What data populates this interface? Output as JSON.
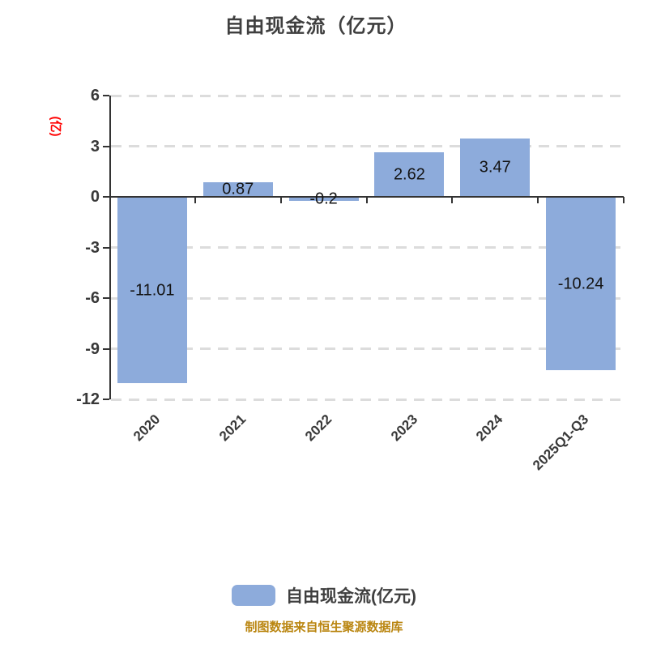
{
  "title": "自由现金流（亿元）",
  "y_axis_name": "(亿)",
  "legend": {
    "label": "自由现金流(亿元)"
  },
  "footer": "制图数据来自恒生聚源数据库",
  "colors": {
    "bar_fill": "#8DABDB",
    "title_text": "#3F3F3F",
    "axis_line": "#333333",
    "gridline": "#DCDCDC",
    "value_label_text": "#141414",
    "axis_label_text": "#383838",
    "y_axis_name_text": "#FF0000",
    "footer_text": "#BA8611"
  },
  "chart_data": {
    "type": "bar",
    "title": "自由现金流（亿元）",
    "categories": [
      "2020",
      "2021",
      "2022",
      "2023",
      "2024",
      "2025Q1-Q3"
    ],
    "values": [
      -11.01,
      0.87,
      -0.2,
      2.62,
      3.47,
      -10.24
    ],
    "value_labels": [
      "-11.01",
      "0.87",
      "-0.2",
      "2.62",
      "3.47",
      "-10.24"
    ],
    "xlabel": "",
    "ylabel": "(亿)",
    "ylim": [
      -12,
      6
    ],
    "yticks": [
      6,
      3,
      0,
      -3,
      -6,
      -9,
      -12
    ],
    "ytick_labels": [
      "6",
      "3",
      "0",
      "-3",
      "-6",
      "-9",
      "-12"
    ],
    "grid": "horizontal-dashed",
    "x_tick_position": "category-boundaries",
    "x_label_rotation_deg": 45,
    "legend": [
      "自由现金流(亿元)"
    ],
    "legend_position": "bottom",
    "value_label_position": "inside-center"
  }
}
